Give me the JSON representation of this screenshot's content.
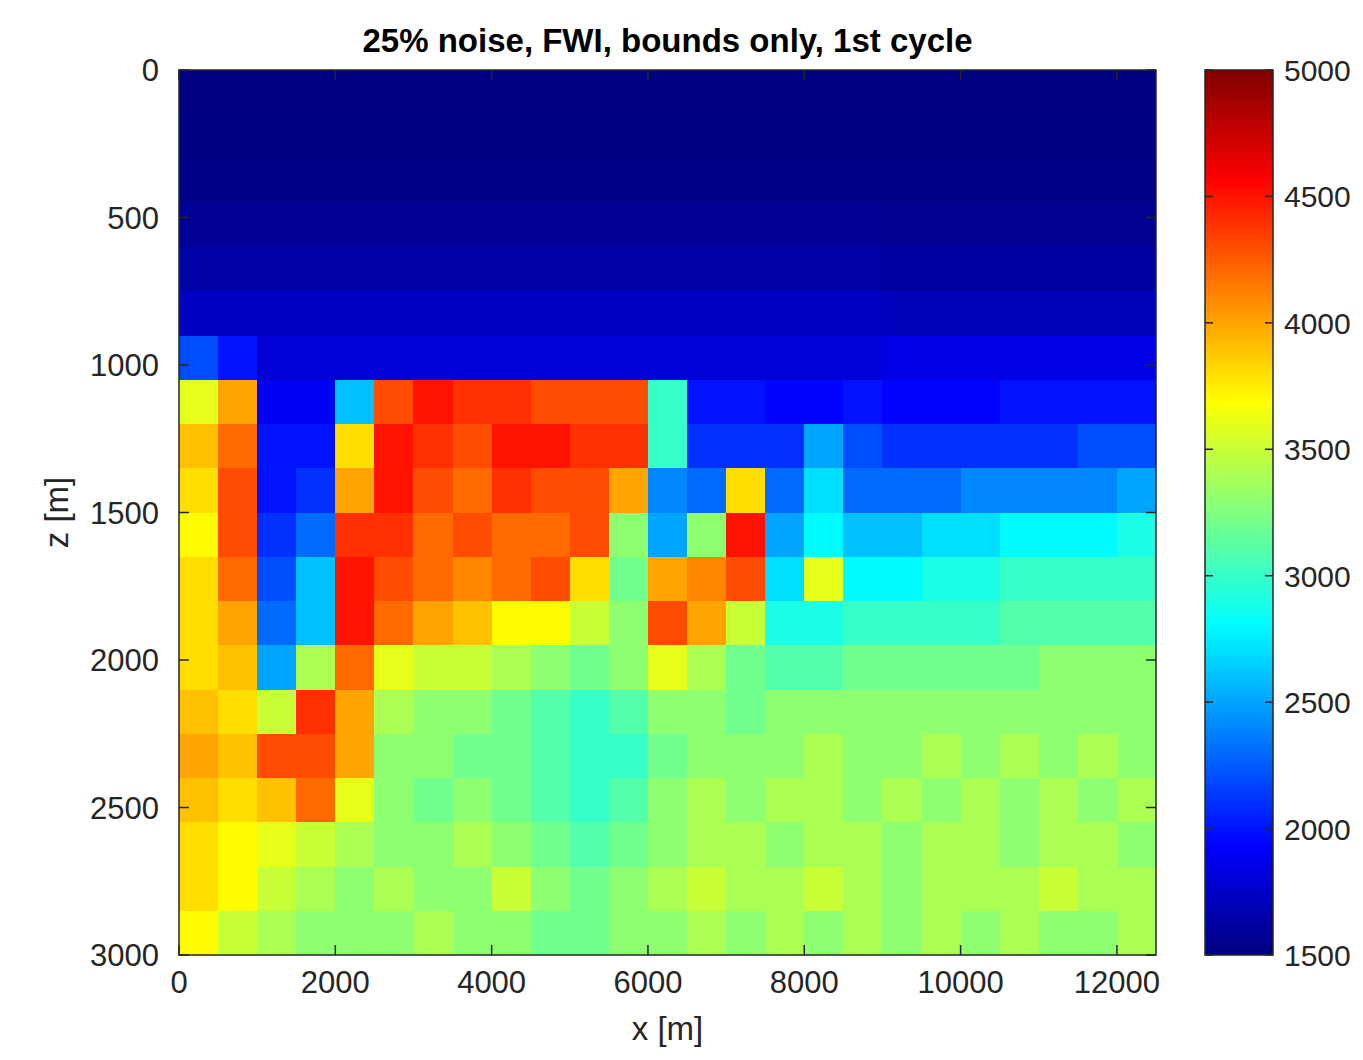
{
  "chart_data": {
    "type": "heatmap",
    "title": "25% noise, FWI, bounds only, 1st cycle",
    "x_label": "x [m]",
    "y_label": "z [m]",
    "color": "jet",
    "xlim": [
      0,
      12500
    ],
    "ylim": [
      3000,
      0
    ],
    "xticks": [
      0,
      2000,
      4000,
      6000,
      8000,
      10000,
      12000
    ],
    "yticks": [
      0,
      500,
      1000,
      1500,
      2000,
      2500,
      3000
    ],
    "colorbar_range": [
      1500,
      5000
    ],
    "colorbar_ticks": [
      1500,
      2000,
      2500,
      3000,
      3500,
      4000,
      4500,
      5000
    ],
    "x": [
      250,
      750,
      1250,
      1750,
      2250,
      2750,
      3250,
      3750,
      4250,
      4750,
      5250,
      5750,
      6250,
      6750,
      7250,
      7750,
      8250,
      8750,
      9250,
      9750,
      10250,
      10750,
      11250,
      11750,
      12250
    ],
    "y": [
      75,
      225,
      375,
      525,
      675,
      825,
      975,
      1125,
      1275,
      1425,
      1575,
      1725,
      1875,
      2025,
      2175,
      2325,
      2475,
      2625,
      2775,
      2925
    ],
    "cells": [
      [
        1500,
        1500,
        1500,
        1500,
        1500,
        1500,
        1500,
        1500,
        1500,
        1500,
        1500,
        1500,
        1500,
        1500,
        1500,
        1500,
        1500,
        1500,
        1500,
        1500,
        1500,
        1500,
        1500,
        1500,
        1500
      ],
      [
        1510,
        1510,
        1510,
        1510,
        1510,
        1510,
        1510,
        1510,
        1510,
        1510,
        1510,
        1510,
        1510,
        1510,
        1510,
        1510,
        1510,
        1510,
        1510,
        1510,
        1510,
        1510,
        1510,
        1510,
        1510
      ],
      [
        1530,
        1530,
        1530,
        1530,
        1530,
        1530,
        1530,
        1530,
        1530,
        1530,
        1530,
        1530,
        1530,
        1530,
        1530,
        1530,
        1530,
        1530,
        1530,
        1530,
        1530,
        1530,
        1530,
        1530,
        1530
      ],
      [
        1580,
        1580,
        1580,
        1580,
        1580,
        1580,
        1580,
        1580,
        1580,
        1580,
        1580,
        1580,
        1580,
        1580,
        1580,
        1580,
        1580,
        1580,
        1560,
        1560,
        1560,
        1560,
        1560,
        1560,
        1560
      ],
      [
        1640,
        1640,
        1640,
        1640,
        1640,
        1640,
        1640,
        1640,
        1640,
        1640,
        1640,
        1640,
        1640,
        1640,
        1640,
        1640,
        1640,
        1640,
        1620,
        1620,
        1620,
        1620,
        1620,
        1620,
        1620
      ],
      [
        1720,
        1720,
        1720,
        1720,
        1720,
        1720,
        1720,
        1720,
        1720,
        1720,
        1720,
        1720,
        1720,
        1720,
        1720,
        1720,
        1720,
        1720,
        1700,
        1700,
        1700,
        1700,
        1700,
        1700,
        1700
      ],
      [
        2200,
        2000,
        1800,
        1800,
        1800,
        1800,
        1800,
        1800,
        1800,
        1800,
        1800,
        1800,
        1800,
        1800,
        1800,
        1800,
        1800,
        1800,
        1850,
        1850,
        1850,
        1850,
        1850,
        1850,
        1850
      ],
      [
        3600,
        4000,
        1900,
        1900,
        2600,
        4300,
        4500,
        4400,
        4400,
        4300,
        4300,
        4300,
        3000,
        2000,
        2000,
        1950,
        1950,
        2000,
        1950,
        1950,
        1950,
        2000,
        2000,
        2000,
        2000
      ],
      [
        3900,
        4200,
        2000,
        2000,
        3800,
        4500,
        4400,
        4300,
        4500,
        4500,
        4400,
        4400,
        3000,
        2100,
        2100,
        2100,
        2500,
        2200,
        2100,
        2100,
        2100,
        2100,
        2100,
        2200,
        2200
      ],
      [
        3800,
        4300,
        2000,
        2100,
        4000,
        4500,
        4300,
        4200,
        4400,
        4300,
        4300,
        4000,
        2400,
        2300,
        3800,
        2300,
        2700,
        2300,
        2300,
        2300,
        2400,
        2400,
        2400,
        2400,
        2500
      ],
      [
        3700,
        4300,
        2100,
        2300,
        4400,
        4400,
        4200,
        4300,
        4200,
        4200,
        4300,
        3300,
        2500,
        3300,
        4500,
        2500,
        2800,
        2600,
        2600,
        2700,
        2700,
        2800,
        2800,
        2800,
        2900
      ],
      [
        3800,
        4200,
        2200,
        2600,
        4500,
        4300,
        4200,
        4100,
        4200,
        4300,
        3800,
        3200,
        4000,
        4100,
        4300,
        2700,
        3600,
        2800,
        2800,
        2900,
        2900,
        3000,
        3000,
        3000,
        3000
      ],
      [
        3800,
        4000,
        2300,
        2600,
        4500,
        4200,
        4000,
        3900,
        3700,
        3700,
        3500,
        3300,
        4300,
        4000,
        3500,
        2900,
        2900,
        3000,
        3000,
        3000,
        3000,
        3100,
        3100,
        3100,
        3100
      ],
      [
        3800,
        3900,
        2500,
        3400,
        4200,
        3600,
        3500,
        3500,
        3400,
        3300,
        3200,
        3300,
        3600,
        3400,
        3200,
        3100,
        3100,
        3200,
        3200,
        3200,
        3200,
        3200,
        3300,
        3300,
        3300
      ],
      [
        3900,
        3800,
        3500,
        4400,
        4000,
        3400,
        3300,
        3300,
        3200,
        3100,
        3000,
        3100,
        3300,
        3300,
        3200,
        3300,
        3300,
        3300,
        3300,
        3300,
        3300,
        3300,
        3300,
        3300,
        3300
      ],
      [
        4000,
        3900,
        4300,
        4300,
        4000,
        3300,
        3300,
        3200,
        3200,
        3100,
        3000,
        3000,
        3200,
        3300,
        3300,
        3300,
        3400,
        3300,
        3300,
        3400,
        3300,
        3400,
        3300,
        3400,
        3300
      ],
      [
        3900,
        3800,
        3900,
        4200,
        3600,
        3300,
        3200,
        3300,
        3200,
        3100,
        3000,
        3100,
        3300,
        3400,
        3300,
        3400,
        3400,
        3300,
        3400,
        3300,
        3400,
        3300,
        3400,
        3300,
        3400
      ],
      [
        3800,
        3700,
        3600,
        3500,
        3400,
        3300,
        3300,
        3400,
        3300,
        3200,
        3100,
        3200,
        3300,
        3400,
        3400,
        3300,
        3400,
        3400,
        3300,
        3400,
        3400,
        3300,
        3400,
        3400,
        3300
      ],
      [
        3800,
        3700,
        3500,
        3400,
        3300,
        3400,
        3300,
        3300,
        3500,
        3300,
        3200,
        3300,
        3400,
        3500,
        3400,
        3400,
        3500,
        3400,
        3300,
        3400,
        3400,
        3400,
        3500,
        3400,
        3400
      ],
      [
        3700,
        3500,
        3400,
        3300,
        3300,
        3300,
        3400,
        3300,
        3300,
        3200,
        3200,
        3300,
        3300,
        3400,
        3300,
        3400,
        3300,
        3400,
        3300,
        3400,
        3300,
        3400,
        3300,
        3300,
        3400
      ]
    ]
  }
}
